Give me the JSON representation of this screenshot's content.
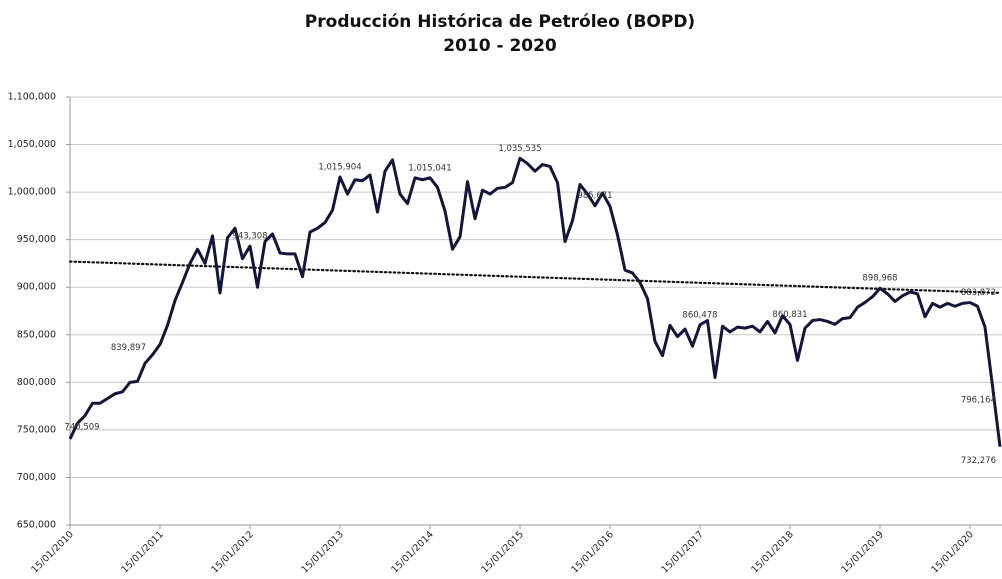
{
  "chart_data": {
    "type": "line",
    "title": "Producción Histórica de Petróleo (BOPD)",
    "subtitle": "2010 - 2020",
    "categories": [
      "15/01/2010",
      null,
      null,
      null,
      null,
      null,
      null,
      null,
      null,
      null,
      null,
      null,
      "15/01/2011",
      null,
      null,
      null,
      null,
      null,
      null,
      null,
      null,
      null,
      null,
      null,
      "15/01/2012",
      null,
      null,
      null,
      null,
      null,
      null,
      null,
      null,
      null,
      null,
      null,
      "15/01/2013",
      null,
      null,
      null,
      null,
      null,
      null,
      null,
      null,
      null,
      null,
      null,
      "15/01/2014",
      null,
      null,
      null,
      null,
      null,
      null,
      null,
      null,
      null,
      null,
      null,
      "15/01/2015",
      null,
      null,
      null,
      null,
      null,
      null,
      null,
      null,
      null,
      null,
      null,
      "15/01/2016",
      null,
      null,
      null,
      null,
      null,
      null,
      null,
      null,
      null,
      null,
      null,
      "15/01/2017",
      null,
      null,
      null,
      null,
      null,
      null,
      null,
      null,
      null,
      null,
      null,
      "15/01/2018",
      null,
      null,
      null,
      null,
      null,
      null,
      null,
      null,
      null,
      null,
      null,
      "15/01/2019",
      null,
      null,
      null,
      null,
      null,
      null,
      null,
      null,
      null,
      null,
      null,
      "15/01/2020",
      null,
      null,
      null,
      null
    ],
    "series": [
      {
        "name": "Producción",
        "color": "#14143c",
        "values": [
          740509,
          757000,
          765000,
          778000,
          778000,
          783000,
          788000,
          790000,
          800000,
          801000,
          820000,
          829000,
          839897,
          860000,
          886000,
          905000,
          925000,
          940000,
          925000,
          954000,
          894000,
          952000,
          962000,
          930000,
          943308,
          900000,
          948000,
          956000,
          936000,
          935000,
          935000,
          911000,
          958000,
          962000,
          968000,
          981000,
          1015904,
          998000,
          1013000,
          1012000,
          1018000,
          979000,
          1022000,
          1034000,
          998000,
          988000,
          1015000,
          1013000,
          1015041,
          1005000,
          980000,
          940000,
          953000,
          1011000,
          972000,
          1002000,
          998000,
          1004000,
          1005000,
          1010000,
          1035535,
          1030000,
          1022000,
          1029000,
          1027000,
          1010000,
          948000,
          970000,
          1008000,
          998000,
          985671,
          999000,
          985000,
          955000,
          918000,
          915000,
          905000,
          888000,
          843000,
          828000,
          860000,
          848000,
          856000,
          838000,
          860478,
          865000,
          805000,
          859000,
          853000,
          858000,
          857000,
          859000,
          853000,
          864000,
          852000,
          870000,
          860831,
          823000,
          857000,
          865000,
          866000,
          864000,
          861000,
          867000,
          868000,
          879000,
          884000,
          890000,
          898968,
          893000,
          885000,
          891000,
          895000,
          893000,
          869000,
          883000,
          879000,
          883000,
          880000,
          883000,
          883872,
          880000,
          858000,
          796164,
          732276
        ],
        "value_labels": [
          "740,509",
          null,
          null,
          null,
          null,
          null,
          null,
          null,
          null,
          null,
          null,
          null,
          "839,897",
          null,
          null,
          null,
          null,
          null,
          null,
          null,
          null,
          null,
          null,
          null,
          "943,308",
          null,
          null,
          null,
          null,
          null,
          null,
          null,
          null,
          null,
          null,
          null,
          "1,015,904",
          null,
          null,
          null,
          null,
          null,
          null,
          null,
          null,
          null,
          null,
          null,
          "1,015,041",
          null,
          null,
          null,
          null,
          null,
          null,
          null,
          null,
          null,
          null,
          null,
          "1,035,535",
          null,
          null,
          null,
          null,
          null,
          null,
          null,
          null,
          null,
          "985,671",
          null,
          null,
          null,
          null,
          null,
          null,
          null,
          null,
          null,
          null,
          null,
          null,
          null,
          "860,478",
          null,
          null,
          null,
          null,
          null,
          null,
          null,
          null,
          null,
          null,
          null,
          "860,831",
          null,
          null,
          null,
          null,
          null,
          null,
          null,
          null,
          null,
          null,
          null,
          "898,968",
          null,
          null,
          null,
          null,
          null,
          null,
          null,
          null,
          null,
          null,
          null,
          "883,872",
          null,
          null,
          "796,164",
          "732,276"
        ]
      }
    ],
    "trendline": [
      927000,
      894000
    ],
    "ylim": [
      650000,
      1100000
    ],
    "yticks": [
      {
        "value": 650000,
        "label": "650,000"
      },
      {
        "value": 700000,
        "label": "700,000"
      },
      {
        "value": 750000,
        "label": "750,000"
      },
      {
        "value": 800000,
        "label": "800,000"
      },
      {
        "value": 850000,
        "label": "850,000"
      },
      {
        "value": 900000,
        "label": "900,000"
      },
      {
        "value": 950000,
        "label": "950,000"
      },
      {
        "value": 1000000,
        "label": "1,000,000"
      },
      {
        "value": 1050000,
        "label": "1,050,000"
      },
      {
        "value": 1100000,
        "label": "1,100,000"
      }
    ],
    "grid": true
  }
}
